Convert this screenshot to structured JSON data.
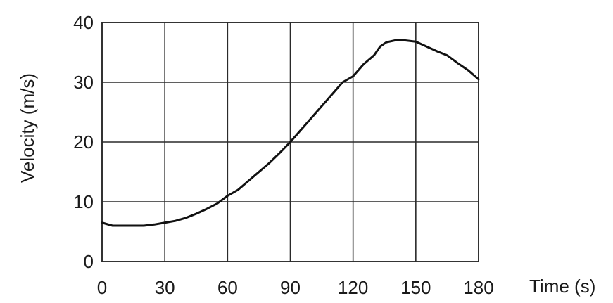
{
  "chart_data": {
    "type": "line",
    "title": "",
    "xlabel": "Time (s)",
    "ylabel": "Velocity (m/s)",
    "xlim": [
      0,
      180
    ],
    "ylim": [
      0,
      40
    ],
    "grid": true,
    "xticks": [
      0,
      30,
      60,
      90,
      120,
      150,
      180
    ],
    "yticks": [
      0,
      10,
      20,
      30,
      40
    ],
    "xtick_labels": [
      "0",
      "30",
      "60",
      "90",
      "120",
      "150",
      "180"
    ],
    "ytick_labels": [
      "0",
      "10",
      "20",
      "30",
      "40"
    ],
    "series": [
      {
        "x": [
          0,
          5,
          10,
          15,
          20,
          25,
          30,
          35,
          40,
          45,
          50,
          55,
          60,
          65,
          70,
          75,
          80,
          85,
          90,
          95,
          100,
          105,
          110,
          115,
          120,
          125,
          130,
          133,
          136,
          140,
          145,
          150,
          155,
          160,
          165,
          170,
          175,
          180
        ],
        "y": [
          6.5,
          6,
          6,
          6,
          6,
          6.2,
          6.5,
          6.8,
          7.3,
          8,
          8.8,
          9.7,
          11,
          12,
          13.5,
          15,
          16.5,
          18.2,
          20,
          22,
          24,
          26,
          28,
          30,
          31,
          33,
          34.5,
          36,
          36.7,
          37,
          37,
          36.8,
          36,
          35.2,
          34.5,
          33.2,
          32,
          30.5
        ]
      }
    ]
  }
}
